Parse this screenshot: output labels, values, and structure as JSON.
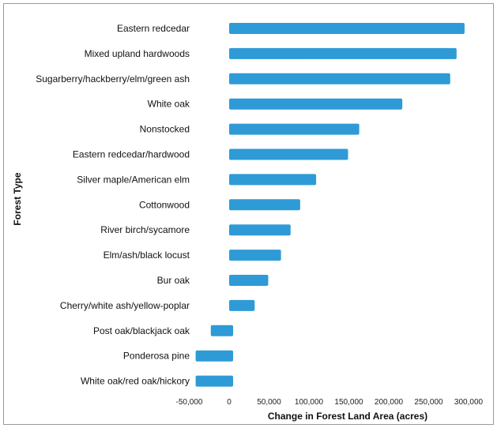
{
  "chart_data": {
    "type": "bar",
    "orientation": "horizontal",
    "title": "",
    "xlabel": "Change in Forest Land Area (acres)",
    "ylabel": "Forest Type",
    "xlim": [
      -50000,
      300000
    ],
    "x_ticks": [
      -50000,
      0,
      50000,
      100000,
      150000,
      200000,
      250000,
      300000
    ],
    "x_tick_labels": [
      "-50,000",
      "0",
      "50,000",
      "100,000",
      "150,000",
      "200,000",
      "250,000",
      "300,000"
    ],
    "grid": false,
    "legend": "none",
    "bar_color": "#2e9bd6",
    "categories": [
      "Eastern redcedar",
      "Mixed upland hardwoods",
      "Sugarberry/hackberry/elm/green ash",
      "White oak",
      "Nonstocked",
      "Eastern redcedar/hardwood",
      "Silver maple/American elm",
      "Cottonwood",
      "River birch/sycamore",
      "Elm/ash/black locust",
      "Bur oak",
      "Cherry/white ash/yellow-poplar",
      "Post oak/blackjack oak",
      "Ponderosa pine",
      "White oak/red oak/hickory"
    ],
    "bars": [
      [
        0,
        295000
      ],
      [
        0,
        285000
      ],
      [
        0,
        277000
      ],
      [
        0,
        217000
      ],
      [
        0,
        163000
      ],
      [
        0,
        149000
      ],
      [
        0,
        109000
      ],
      [
        0,
        89000
      ],
      [
        0,
        77000
      ],
      [
        0,
        65000
      ],
      [
        0,
        49000
      ],
      [
        0,
        32000
      ],
      [
        -23000,
        5000
      ],
      [
        -42000,
        5000
      ],
      [
        -42000,
        5000
      ]
    ]
  }
}
